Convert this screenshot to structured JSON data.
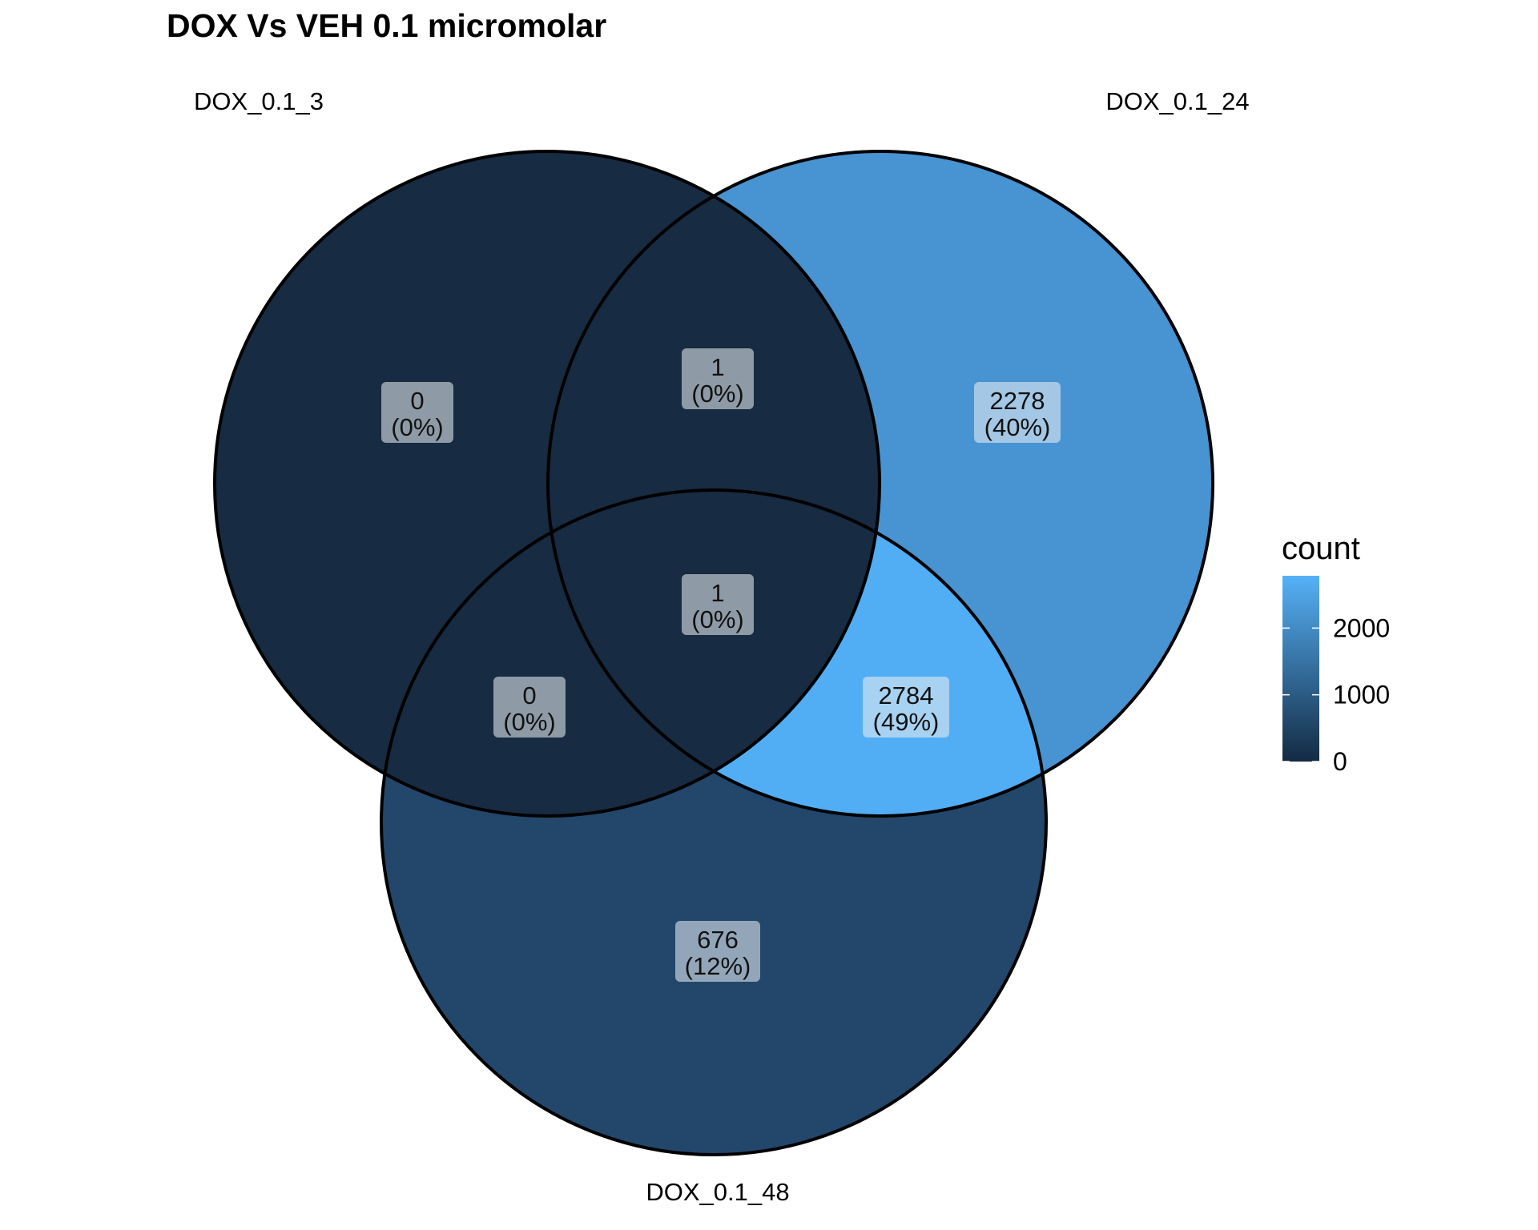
{
  "title": "DOX Vs VEH 0.1 micromolar",
  "sets": [
    {
      "name": "DOX_0.1_3"
    },
    {
      "name": "DOX_0.1_24"
    },
    {
      "name": "DOX_0.1_48"
    }
  ],
  "regions": [
    {
      "id": "only-3",
      "sets": [
        "DOX_0.1_3"
      ],
      "count": 0,
      "percent": "(0%)",
      "count_label": "0",
      "color": "#172b42"
    },
    {
      "id": "3-24",
      "sets": [
        "DOX_0.1_3",
        "DOX_0.1_24"
      ],
      "count": 1,
      "percent": "(0%)",
      "count_label": "1",
      "color": "#172b42"
    },
    {
      "id": "only-24",
      "sets": [
        "DOX_0.1_24"
      ],
      "count": 2278,
      "percent": "(40%)",
      "count_label": "2278",
      "color": "#4893d1"
    },
    {
      "id": "all",
      "sets": [
        "DOX_0.1_3",
        "DOX_0.1_24",
        "DOX_0.1_48"
      ],
      "count": 1,
      "percent": "(0%)",
      "count_label": "1",
      "color": "#172b42"
    },
    {
      "id": "3-48",
      "sets": [
        "DOX_0.1_3",
        "DOX_0.1_48"
      ],
      "count": 0,
      "percent": "(0%)",
      "count_label": "0",
      "color": "#172b42"
    },
    {
      "id": "24-48",
      "sets": [
        "DOX_0.1_24",
        "DOX_0.1_48"
      ],
      "count": 2784,
      "percent": "(49%)",
      "count_label": "2784",
      "color": "#52aef4"
    },
    {
      "id": "only-48",
      "sets": [
        "DOX_0.1_48"
      ],
      "count": 676,
      "percent": "(12%)",
      "count_label": "676",
      "color": "#22476b"
    }
  ],
  "legend": {
    "title": "count",
    "ticks": [
      "2000",
      "1000",
      "0"
    ],
    "tick_values": [
      2000,
      1000,
      0
    ],
    "min": 0,
    "max": 2784,
    "low_color": "#132b43",
    "high_color": "#56b1f7"
  }
}
